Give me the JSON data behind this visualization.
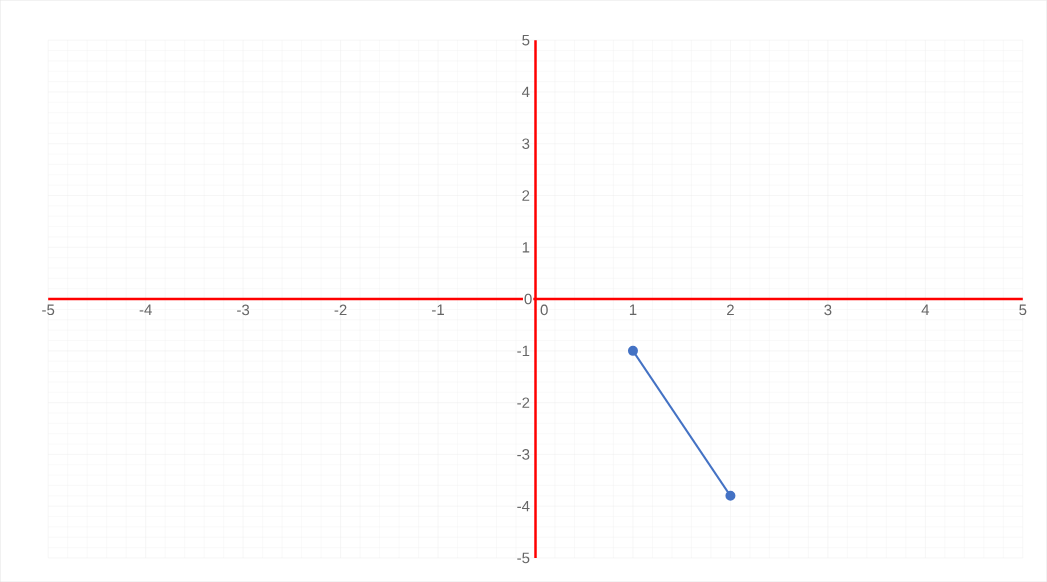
{
  "chart_data": {
    "type": "line",
    "x": [
      1,
      2
    ],
    "values": [
      -1,
      -3.8
    ],
    "color": "#4472c4",
    "marker": "circle",
    "line_style": "solid",
    "grid": true,
    "xlim": [
      -5,
      5
    ],
    "ylim": [
      -5,
      5
    ],
    "xticks": [
      -5,
      -4,
      -3,
      -2,
      -1,
      0,
      1,
      2,
      3,
      4,
      5
    ],
    "yticks": [
      -5,
      -4,
      -3,
      -2,
      -1,
      0,
      1,
      2,
      3,
      4,
      5
    ]
  }
}
